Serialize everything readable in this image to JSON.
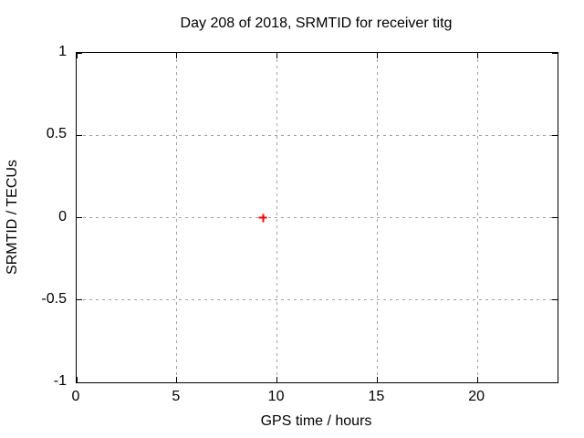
{
  "chart_data": {
    "type": "scatter",
    "title": "Day 208 of 2018, SRMTID for receiver titg",
    "xlabel": "GPS time / hours",
    "ylabel": "SRMTID / TECUs",
    "xlim": [
      0,
      24
    ],
    "ylim": [
      -1,
      1
    ],
    "xticks": [
      0,
      5,
      10,
      15,
      20
    ],
    "xtick_labels": [
      "0",
      "5",
      "10",
      "15",
      "20"
    ],
    "yticks": [
      -1,
      -0.5,
      0,
      0.5,
      1
    ],
    "ytick_labels": [
      "-1",
      "-0.5",
      "0",
      "0.5",
      "1"
    ],
    "grid": true,
    "legend": "none",
    "colors": {
      "foreground": "#000000",
      "background": "#ffffff",
      "grid": "#a0a0a0",
      "marker": "#ff0000"
    },
    "marker_style": "plus",
    "series": [
      {
        "name": "SRMTID",
        "points": [
          {
            "x": 9.3,
            "y": 0
          }
        ]
      }
    ]
  }
}
